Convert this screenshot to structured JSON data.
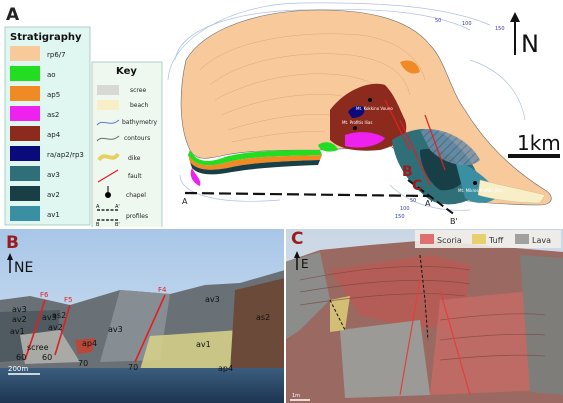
{
  "panel_a": {
    "letter": "A",
    "stratigraphy": {
      "title": "Stratigraphy",
      "units": [
        {
          "label": "rp6/7",
          "color": "#f7c99b"
        },
        {
          "label": "ao",
          "color": "#22dd22"
        },
        {
          "label": "ap5",
          "color": "#f08a25"
        },
        {
          "label": "as2",
          "color": "#ee22ee"
        },
        {
          "label": "ap4",
          "color": "#8c2a1e"
        },
        {
          "label": "ra/ap2/rp3",
          "color": "#0a0a7a"
        },
        {
          "label": "av3",
          "color": "#2f6f78"
        },
        {
          "label": "av2",
          "color": "#183f46"
        },
        {
          "label": "av1",
          "color": "#3a8fa3"
        }
      ]
    },
    "key": {
      "title": "Key",
      "items": [
        {
          "label": "scree",
          "color": "#d8d8d4"
        },
        {
          "label": "beach",
          "color": "#f8efc8"
        },
        {
          "label": "bathymetry",
          "color": "#5c79d8"
        },
        {
          "label": "contours",
          "color": "#6a6a6a"
        },
        {
          "label": "dike",
          "color": "#e8d060"
        },
        {
          "label": "fault",
          "color": "#e02020"
        },
        {
          "label": "chapel",
          "color": "#000000"
        },
        {
          "label": "profiles",
          "color": "#000000"
        }
      ],
      "profile_marks": [
        "A",
        "A'",
        "B",
        "B'"
      ]
    },
    "map_labels": {
      "north": "N",
      "scale": "1km",
      "chapel_1": "Mt. Kokkino Vouno",
      "chapel_2": "Mt. Profitis Ilias",
      "chapel_3": "Mt. Mikros Profitis Ilias",
      "profile_a_start": "A",
      "profile_a_end": "A'",
      "profile_b_end": "B'",
      "marker_b": "B",
      "marker_c": "C",
      "bathy_labels": [
        "50",
        "100",
        "150",
        "50",
        "100",
        "150"
      ]
    }
  },
  "panel_b": {
    "letter": "B",
    "direction": "NE",
    "scale": "200m",
    "labels": [
      "av3",
      "av2",
      "av1",
      "av3",
      "as2",
      "av2",
      "av3",
      "ap4",
      "av1",
      "as2",
      "scree",
      "ap4"
    ],
    "faults": [
      "F6",
      "F5",
      "F4"
    ],
    "dips": [
      "60",
      "60",
      "70",
      "70"
    ]
  },
  "panel_c": {
    "letter": "C",
    "direction": "E",
    "legend": [
      {
        "label": "Scoria",
        "color": "#e07070"
      },
      {
        "label": "Tuff",
        "color": "#e8d070"
      },
      {
        "label": "Lava",
        "color": "#a0a0a0"
      }
    ],
    "scale": "1m"
  }
}
